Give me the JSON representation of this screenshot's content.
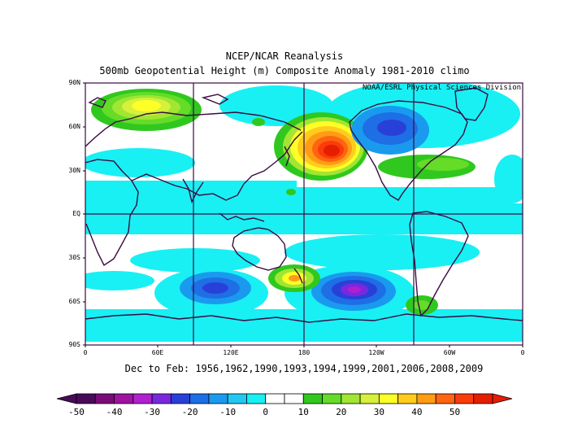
{
  "title": "NCEP/NCAR Reanalysis",
  "subtitle": "500mb Geopotential Height (m) Composite Anomaly 1981-2010 climo",
  "attribution": "NOAA/ESRL Physical Sciences Division",
  "caption": "Dec to Feb: 1956,1962,1990,1993,1994,1999,2001,2006,2008,2009",
  "lat_labels": [
    "90N",
    "60N",
    "30N",
    "EQ",
    "30S",
    "60S",
    "90S"
  ],
  "lon_labels": [
    "0",
    "60E",
    "120E",
    "180",
    "120W",
    "60W",
    "0"
  ],
  "colorbar": {
    "labels": [
      "-50",
      "-40",
      "-30",
      "-20",
      "-10",
      "0",
      "10",
      "20",
      "30",
      "40",
      "50"
    ],
    "colors": [
      "#4a0a5a",
      "#7a0c78",
      "#a012a0",
      "#b020d0",
      "#7a28e0",
      "#2840d8",
      "#1e6ee6",
      "#1a9aee",
      "#22c8f0",
      "#18f0f4",
      "#ffffff",
      "#ffffff",
      "#30c81e",
      "#64dc28",
      "#a0e632",
      "#d6f03c",
      "#ffff28",
      "#ffcc1e",
      "#ff9c14",
      "#ff6410",
      "#fa3c0a",
      "#e61e00"
    ]
  },
  "chart_data": {
    "type": "heatmap",
    "title": "NCEP/NCAR Reanalysis",
    "subtitle": "500mb Geopotential Height (m) Composite Anomaly 1981-2010 climo",
    "caption": "Dec to Feb: 1956,1962,1990,1993,1994,1999,2001,2006,2008,2009",
    "xlim": [
      0,
      360
    ],
    "ylim": [
      -90,
      90
    ],
    "value_range": [
      -50,
      50
    ],
    "anomaly_centers": [
      {
        "lon": 25,
        "lat": 70,
        "value": 28
      },
      {
        "lon": 190,
        "lat": 45,
        "value": 50
      },
      {
        "lon": 252,
        "lat": 60,
        "value": -22
      },
      {
        "lon": 290,
        "lat": 33,
        "value": 14
      },
      {
        "lon": 105,
        "lat": -50,
        "value": -20
      },
      {
        "lon": 215,
        "lat": -50,
        "value": -28
      },
      {
        "lon": 175,
        "lat": -40,
        "value": 26
      },
      {
        "lon": 295,
        "lat": -60,
        "value": 12
      }
    ]
  }
}
